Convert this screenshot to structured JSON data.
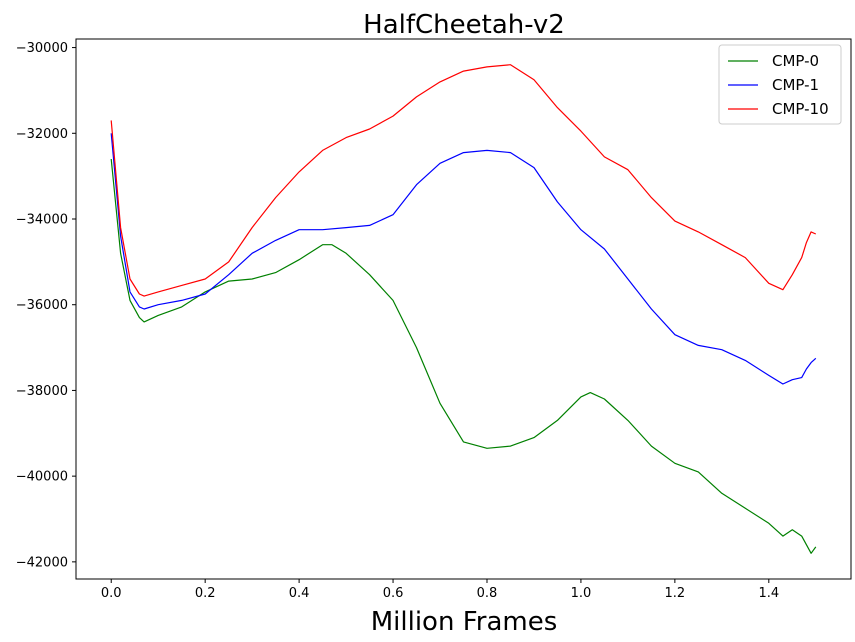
{
  "chart_data": {
    "type": "line",
    "title": "HalfCheetah-v2",
    "xlabel": "Million Frames",
    "ylabel": "",
    "xlim": [
      -0.075,
      1.575
    ],
    "ylim": [
      -42400,
      -29800
    ],
    "xticks": [
      0.0,
      0.2,
      0.4,
      0.6,
      0.8,
      1.0,
      1.2,
      1.4
    ],
    "xtick_labels": [
      "0.0",
      "0.2",
      "0.4",
      "0.6",
      "0.8",
      "1.0",
      "1.2",
      "1.4"
    ],
    "yticks": [
      -30000,
      -32000,
      -34000,
      -36000,
      -38000,
      -40000,
      -42000
    ],
    "ytick_labels": [
      "−30000",
      "−32000",
      "−34000",
      "−36000",
      "−38000",
      "−40000",
      "−42000"
    ],
    "grid": false,
    "legend_position": "top-right",
    "series": [
      {
        "name": "CMP-0",
        "color": "#008000",
        "x": [
          0.0,
          0.02,
          0.04,
          0.06,
          0.07,
          0.1,
          0.15,
          0.2,
          0.25,
          0.3,
          0.35,
          0.4,
          0.45,
          0.47,
          0.5,
          0.55,
          0.6,
          0.65,
          0.7,
          0.75,
          0.8,
          0.85,
          0.9,
          0.95,
          1.0,
          1.02,
          1.05,
          1.1,
          1.15,
          1.2,
          1.25,
          1.3,
          1.35,
          1.4,
          1.43,
          1.45,
          1.47,
          1.48,
          1.49,
          1.5
        ],
        "y": [
          -32600,
          -34800,
          -35900,
          -36300,
          -36400,
          -36250,
          -36050,
          -35700,
          -35450,
          -35400,
          -35250,
          -34950,
          -34600,
          -34600,
          -34800,
          -35300,
          -35900,
          -37000,
          -38300,
          -39200,
          -39350,
          -39300,
          -39100,
          -38700,
          -38150,
          -38050,
          -38200,
          -38700,
          -39300,
          -39700,
          -39900,
          -40400,
          -40750,
          -41100,
          -41400,
          -41250,
          -41400,
          -41600,
          -41800,
          -41650
        ]
      },
      {
        "name": "CMP-1",
        "color": "#0000ff",
        "x": [
          0.0,
          0.02,
          0.04,
          0.06,
          0.07,
          0.1,
          0.15,
          0.2,
          0.25,
          0.3,
          0.35,
          0.4,
          0.45,
          0.5,
          0.55,
          0.6,
          0.65,
          0.7,
          0.75,
          0.8,
          0.85,
          0.9,
          0.95,
          1.0,
          1.05,
          1.1,
          1.15,
          1.2,
          1.25,
          1.3,
          1.35,
          1.4,
          1.43,
          1.45,
          1.47,
          1.48,
          1.49,
          1.5
        ],
        "y": [
          -32000,
          -34400,
          -35700,
          -36050,
          -36100,
          -36000,
          -35900,
          -35750,
          -35300,
          -34800,
          -34500,
          -34250,
          -34250,
          -34200,
          -34150,
          -33900,
          -33200,
          -32700,
          -32450,
          -32400,
          -32450,
          -32800,
          -33600,
          -34250,
          -34700,
          -35400,
          -36100,
          -36700,
          -36950,
          -37050,
          -37300,
          -37650,
          -37850,
          -37750,
          -37700,
          -37500,
          -37350,
          -37250
        ]
      },
      {
        "name": "CMP-10",
        "color": "#ff0000",
        "x": [
          0.0,
          0.02,
          0.04,
          0.06,
          0.07,
          0.1,
          0.15,
          0.2,
          0.25,
          0.3,
          0.35,
          0.4,
          0.45,
          0.5,
          0.55,
          0.6,
          0.65,
          0.7,
          0.75,
          0.8,
          0.85,
          0.9,
          0.95,
          1.0,
          1.05,
          1.1,
          1.15,
          1.2,
          1.25,
          1.3,
          1.35,
          1.4,
          1.43,
          1.45,
          1.47,
          1.48,
          1.49,
          1.5
        ],
        "y": [
          -31700,
          -34200,
          -35400,
          -35750,
          -35800,
          -35700,
          -35550,
          -35400,
          -35000,
          -34200,
          -33500,
          -32900,
          -32400,
          -32100,
          -31900,
          -31600,
          -31150,
          -30800,
          -30550,
          -30450,
          -30400,
          -30750,
          -31400,
          -31950,
          -32550,
          -32850,
          -33500,
          -34050,
          -34300,
          -34600,
          -34900,
          -35500,
          -35650,
          -35300,
          -34900,
          -34550,
          -34300,
          -34350
        ]
      }
    ]
  }
}
